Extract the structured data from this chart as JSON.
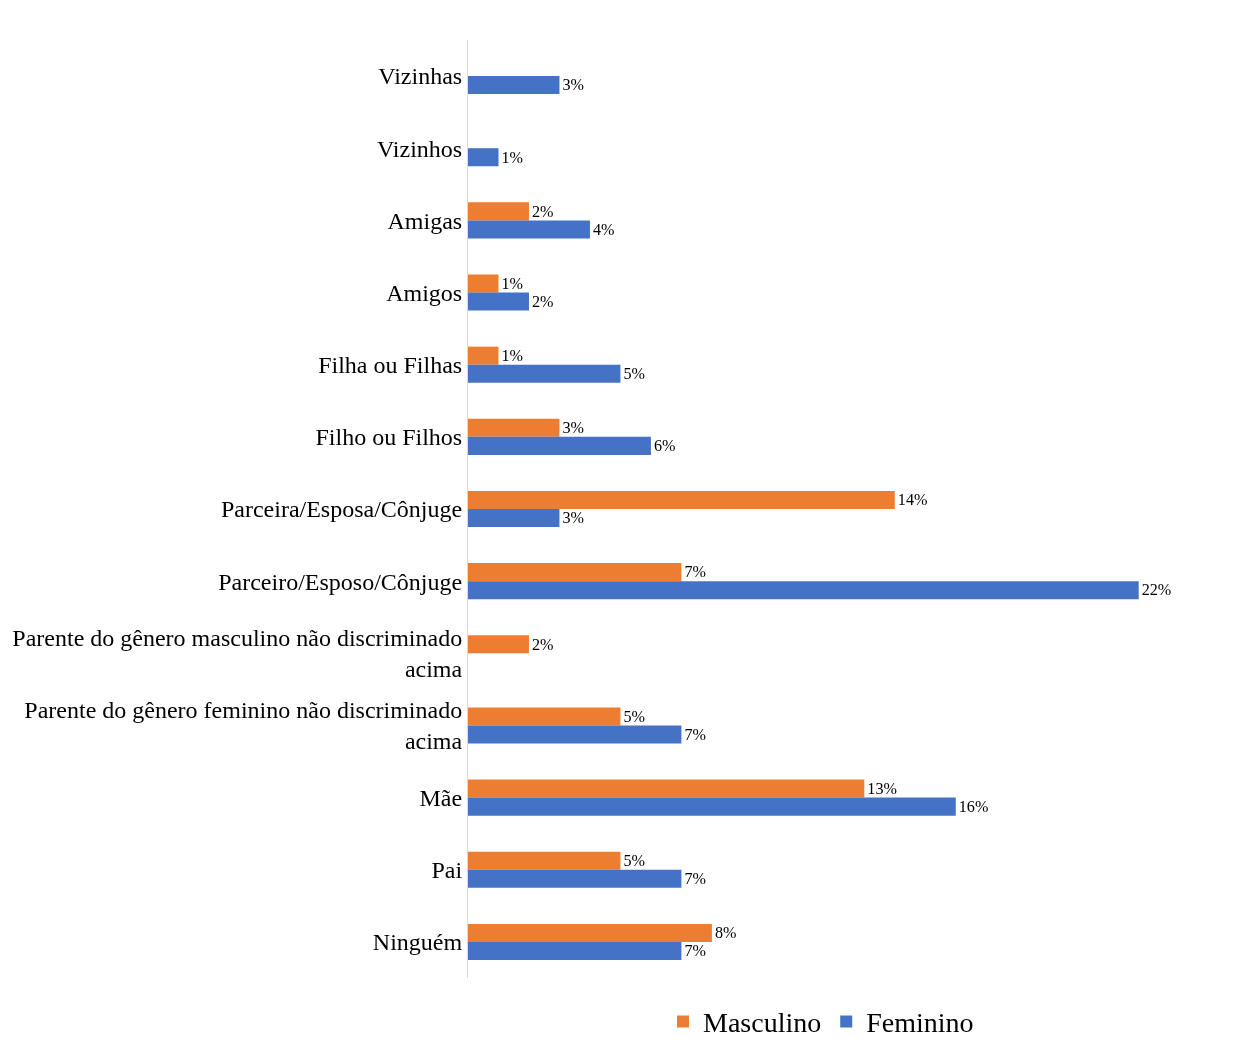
{
  "chart_data": {
    "type": "bar",
    "orientation": "horizontal",
    "categories": [
      "Vizinhas",
      "Vizinhos",
      "Amigas",
      "Amigos",
      "Filha ou Filhas",
      "Filho ou Filhos",
      "Parceira/Esposa/Cônjuge",
      "Parceiro/Esposo/Cônjuge",
      "Parente do gênero masculino não discriminado acima",
      "Parente do gênero feminino não discriminado acima",
      "Mãe",
      "Pai",
      "Ninguém"
    ],
    "series": [
      {
        "name": "Masculino",
        "color": "#ed7d31",
        "values": [
          null,
          null,
          2,
          1,
          1,
          3,
          14,
          7,
          2,
          5,
          13,
          5,
          8
        ],
        "value_labels": [
          null,
          null,
          "2%",
          "1%",
          "1%",
          "3%",
          "14%",
          "7%",
          "2%",
          "5%",
          "13%",
          "5%",
          "8%"
        ]
      },
      {
        "name": "Feminino",
        "color": "#4472c4",
        "values": [
          3,
          1,
          4,
          2,
          5,
          6,
          3,
          22,
          null,
          7,
          16,
          7,
          7
        ],
        "value_labels": [
          "3%",
          "1%",
          "4%",
          "2%",
          "5%",
          "6%",
          "3%",
          "22%",
          null,
          "7%",
          "16%",
          "7%",
          "7%"
        ]
      }
    ],
    "grid": false,
    "legend": "bottom",
    "tick_labels": "y"
  }
}
